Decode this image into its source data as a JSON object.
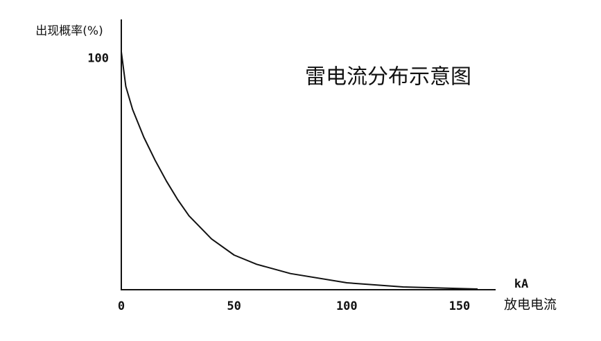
{
  "chart_data": {
    "type": "line",
    "title": "雷电流分布示意图",
    "y_label": "出现概率(%)",
    "x_label": "放电电流",
    "x_unit": "kA",
    "x": [
      0,
      2,
      5,
      10,
      15,
      20,
      25,
      30,
      40,
      50,
      60,
      75,
      100,
      125,
      158
    ],
    "series": [
      {
        "name": null,
        "color": "#111111",
        "values": [
          103,
          88,
          78,
          66,
          56,
          47,
          39,
          32,
          22,
          15,
          11,
          7,
          3,
          1.2,
          0.3
        ]
      }
    ],
    "xlim": [
      0,
      166
    ],
    "ylim": [
      0,
      117
    ],
    "xticks": [
      0,
      50,
      100,
      150
    ],
    "yticks": [
      100
    ],
    "grid": false
  }
}
